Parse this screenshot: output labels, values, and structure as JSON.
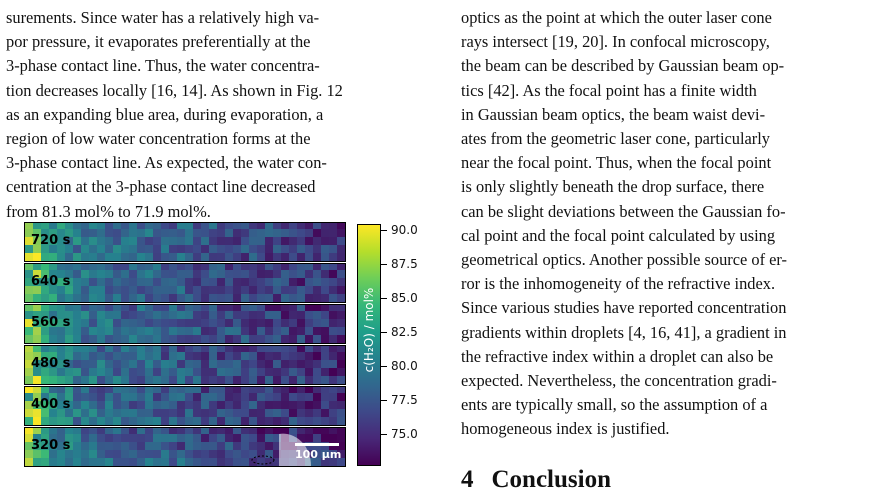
{
  "left_column": {
    "lines": [
      "surements. Since water has a relatively high va-",
      "por pressure, it evaporates preferentially at the",
      "3-phase contact line. Thus, the water concentra-",
      "tion decreases locally [16, 14]. As shown in Fig. 12",
      "as an expanding blue area, during evaporation, a",
      "region of low water concentration forms at the",
      "3-phase contact line. As expected, the water con-",
      "centration at the 3-phase contact line decreased",
      "from 81.3 mol% to 71.9 mol%."
    ]
  },
  "right_column": {
    "lines": [
      "optics as the point at which the outer laser cone",
      "rays intersect [19, 20]. In confocal microscopy,",
      "the beam can be described by Gaussian beam op-",
      "tics [42]. As the focal point has a finite width",
      "in Gaussian beam optics, the beam waist devi-",
      "ates from the geometric laser cone, particularly",
      "near the focal point. Thus, when the focal point",
      "is only slightly beneath the drop surface, there",
      "can be slight deviations between the Gaussian fo-",
      "cal point and the focal point calculated by using",
      "geometrical optics. Another possible source of er-",
      "ror is the inhomogeneity of the refractive index.",
      "Since various studies have reported concentration",
      "gradients within droplets [4, 16, 41], a gradient in",
      "the refractive index within a droplet can also be",
      "expected. Nevertheless, the concentration gradi-",
      "ents are typically small, so the assumption of a",
      "homogeneous index is justified."
    ]
  },
  "figure": {
    "panels": [
      "720 s",
      "640 s",
      "560 s",
      "480 s",
      "400 s",
      "320 s"
    ],
    "colorbar": {
      "label": "c(H₂O) / mol%",
      "ticks": [
        "90.0",
        "87.5",
        "85.0",
        "82.5",
        "80.0",
        "77.5",
        "75.0"
      ],
      "range": [
        73.0,
        90.5
      ],
      "colors": [
        "#440154",
        "#3e4989",
        "#26828e",
        "#35b779",
        "#fde725"
      ]
    },
    "scalebar": "100 µm"
  },
  "section": {
    "number": "4",
    "title": "Conclusion"
  }
}
